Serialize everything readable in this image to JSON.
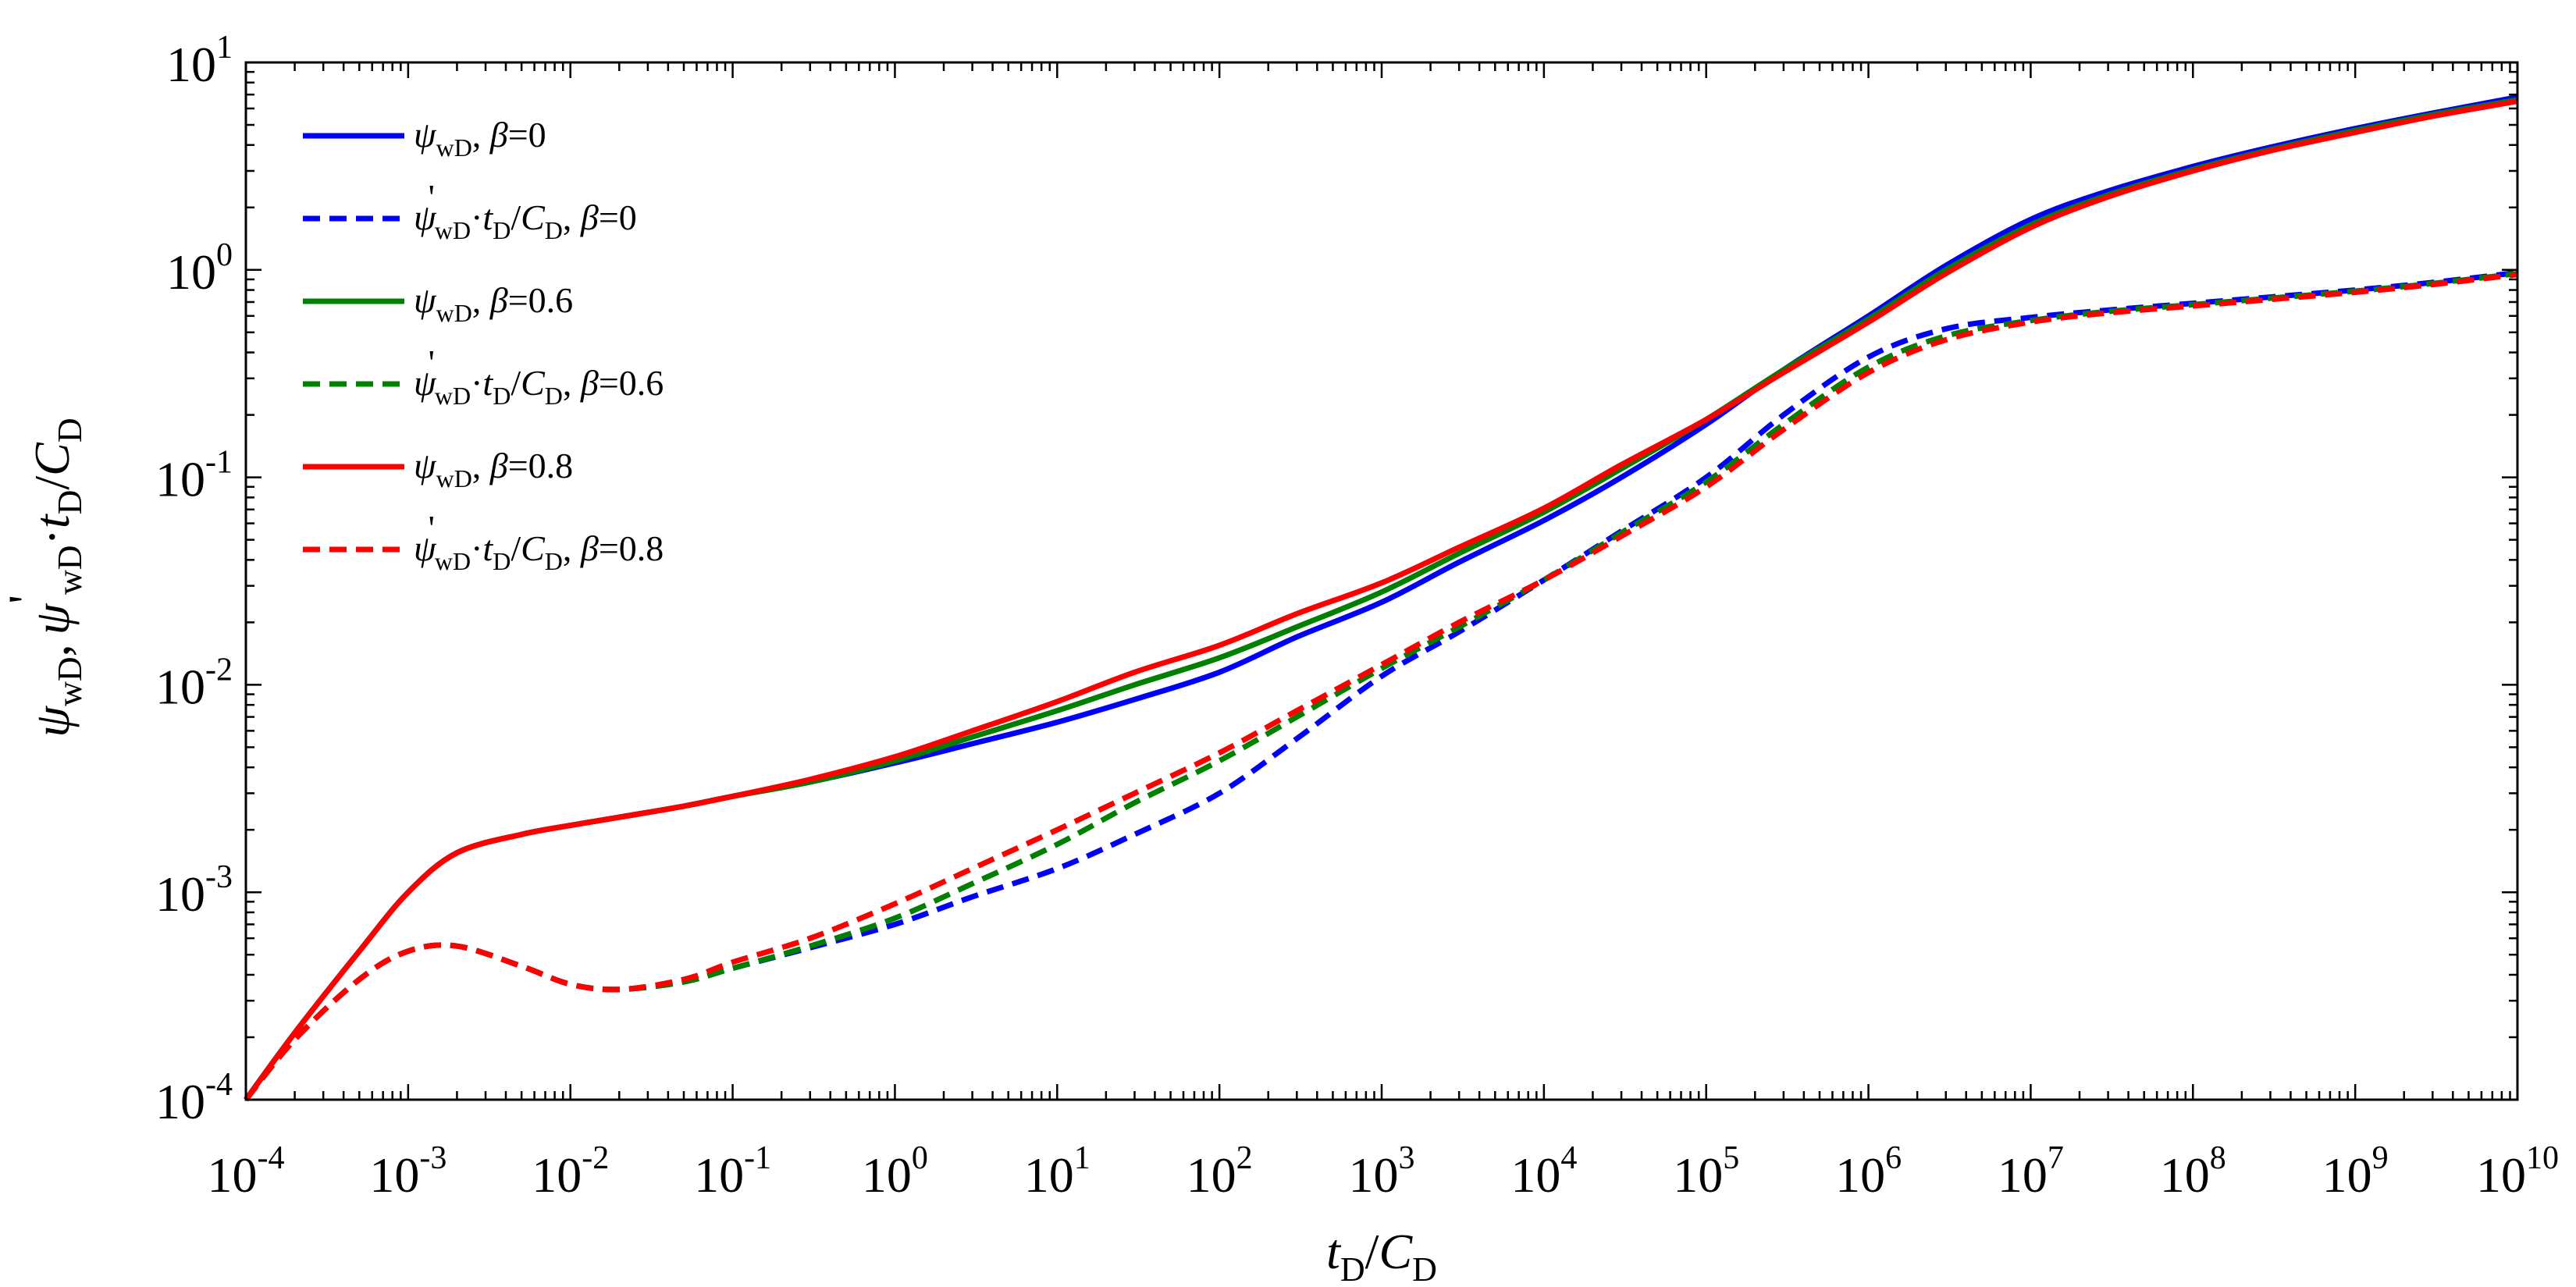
{
  "chart_data": {
    "type": "line",
    "xscale": "log",
    "yscale": "log",
    "xlim": [
      0.0001,
      10000000000
    ],
    "ylim": [
      0.0001,
      10
    ],
    "x_ticks": [
      {
        "base": "10",
        "exp": "-4",
        "value": 0.0001
      },
      {
        "base": "10",
        "exp": "-3",
        "value": 0.001
      },
      {
        "base": "10",
        "exp": "-2",
        "value": 0.01
      },
      {
        "base": "10",
        "exp": "-1",
        "value": 0.1
      },
      {
        "base": "10",
        "exp": "0",
        "value": 1
      },
      {
        "base": "10",
        "exp": "1",
        "value": 10
      },
      {
        "base": "10",
        "exp": "2",
        "value": 100
      },
      {
        "base": "10",
        "exp": "3",
        "value": 1000
      },
      {
        "base": "10",
        "exp": "4",
        "value": 10000
      },
      {
        "base": "10",
        "exp": "5",
        "value": 100000
      },
      {
        "base": "10",
        "exp": "6",
        "value": 1000000
      },
      {
        "base": "10",
        "exp": "7",
        "value": 10000000
      },
      {
        "base": "10",
        "exp": "8",
        "value": 100000000
      },
      {
        "base": "10",
        "exp": "9",
        "value": 1000000000
      },
      {
        "base": "10",
        "exp": "10",
        "value": 10000000000
      }
    ],
    "y_ticks": [
      {
        "base": "10",
        "exp": "-4",
        "value": 0.0001
      },
      {
        "base": "10",
        "exp": "-3",
        "value": 0.001
      },
      {
        "base": "10",
        "exp": "-2",
        "value": 0.01
      },
      {
        "base": "10",
        "exp": "-1",
        "value": 0.1
      },
      {
        "base": "10",
        "exp": "0",
        "value": 1
      },
      {
        "base": "10",
        "exp": "1",
        "value": 10
      }
    ],
    "xlabel": {
      "t": "t",
      "t_sub": "D",
      "slash": "/",
      "c": "C",
      "c_sub": "D"
    },
    "ylabel": {
      "psi": "ψ",
      "psi_sub": "wD",
      "comma": ",",
      "prime": "'",
      "dot": "·",
      "t": "t",
      "t_sub": "D",
      "slash": "/",
      "c": "C",
      "c_sub": "D"
    },
    "x": [
      0.0001,
      0.0002,
      0.0005,
      0.001,
      0.002,
      0.005,
      0.01,
      0.02,
      0.05,
      0.1,
      0.3,
      1,
      3,
      10,
      30,
      100,
      300,
      1000,
      3000,
      10000,
      30000,
      100000,
      300000,
      1000000,
      3000000,
      10000000,
      30000000,
      100000000,
      300000000,
      1000000000,
      3000000000,
      10000000000
    ],
    "grid": false,
    "legend_position": "top-left",
    "series": [
      {
        "name": "psi_b0",
        "color": "#0000ff",
        "dash": false,
        "label": {
          "psi": "ψ",
          "sub": "wD",
          "prime": "",
          "tail": "",
          "beta": "β",
          "val": "=0"
        },
        "values": [
          0.0001,
          0.00021,
          0.00052,
          0.001,
          0.00155,
          0.0019,
          0.0021,
          0.0023,
          0.0026,
          0.0029,
          0.0034,
          0.0042,
          0.0052,
          0.0066,
          0.0085,
          0.0115,
          0.017,
          0.025,
          0.039,
          0.062,
          0.1,
          0.18,
          0.33,
          0.6,
          1.05,
          1.75,
          2.4,
          3.15,
          3.9,
          4.8,
          5.7,
          6.8
        ]
      },
      {
        "name": "dpsi_b0",
        "color": "#0000ff",
        "dash": true,
        "label": {
          "psi": "ψ",
          "sub": "wD",
          "prime": "'",
          "tail": "·t_D/C_D,",
          "beta": "β",
          "val": "=0"
        },
        "values": [
          0.0001,
          0.000195,
          0.00038,
          0.00052,
          0.00055,
          0.00044,
          0.00036,
          0.00034,
          0.00037,
          0.00043,
          0.00054,
          0.0007,
          0.00095,
          0.0013,
          0.0019,
          0.003,
          0.0055,
          0.011,
          0.018,
          0.032,
          0.055,
          0.1,
          0.2,
          0.38,
          0.52,
          0.59,
          0.64,
          0.69,
          0.74,
          0.8,
          0.87,
          0.97
        ]
      },
      {
        "name": "psi_b06",
        "color": "#008000",
        "dash": false,
        "label": {
          "psi": "ψ",
          "sub": "wD",
          "prime": "",
          "tail": "",
          "beta": "β",
          "val": "=0.6"
        },
        "values": [
          0.0001,
          0.00021,
          0.00052,
          0.001,
          0.00155,
          0.0019,
          0.0021,
          0.0023,
          0.0026,
          0.0029,
          0.0034,
          0.0043,
          0.0056,
          0.0075,
          0.01,
          0.0135,
          0.019,
          0.028,
          0.043,
          0.068,
          0.11,
          0.19,
          0.33,
          0.58,
          1.0,
          1.65,
          2.3,
          3.05,
          3.8,
          4.7,
          5.6,
          6.6
        ]
      },
      {
        "name": "dpsi_b06",
        "color": "#008000",
        "dash": true,
        "label": {
          "psi": "ψ",
          "sub": "wD",
          "prime": "'",
          "tail": "·t_D/C_D,",
          "beta": "β",
          "val": "=0.6"
        },
        "values": [
          0.0001,
          0.000195,
          0.00038,
          0.00052,
          0.00055,
          0.00044,
          0.00036,
          0.00034,
          0.00037,
          0.00043,
          0.00055,
          0.00075,
          0.0011,
          0.0017,
          0.0027,
          0.0043,
          0.007,
          0.012,
          0.019,
          0.032,
          0.054,
          0.095,
          0.18,
          0.34,
          0.48,
          0.57,
          0.63,
          0.68,
          0.73,
          0.79,
          0.86,
          0.96
        ]
      },
      {
        "name": "psi_b08",
        "color": "#ff0000",
        "dash": false,
        "label": {
          "psi": "ψ",
          "sub": "wD",
          "prime": "",
          "tail": "",
          "beta": "β",
          "val": "=0.8"
        },
        "values": [
          0.0001,
          0.00021,
          0.00052,
          0.001,
          0.00155,
          0.0019,
          0.0021,
          0.0023,
          0.0026,
          0.0029,
          0.0035,
          0.0045,
          0.006,
          0.0083,
          0.0115,
          0.0155,
          0.022,
          0.031,
          0.046,
          0.071,
          0.115,
          0.19,
          0.32,
          0.56,
          0.96,
          1.6,
          2.25,
          3.0,
          3.75,
          4.6,
          5.5,
          6.5
        ]
      },
      {
        "name": "dpsi_b08",
        "color": "#ff0000",
        "dash": true,
        "label": {
          "psi": "ψ",
          "sub": "wD",
          "prime": "'",
          "tail": "·t_D/C_D,",
          "beta": "β",
          "val": "=0.8"
        },
        "values": [
          0.0001,
          0.000195,
          0.00038,
          0.00052,
          0.00055,
          0.00044,
          0.00036,
          0.00034,
          0.00038,
          0.00046,
          0.0006,
          0.00088,
          0.0013,
          0.002,
          0.003,
          0.0047,
          0.0075,
          0.0125,
          0.02,
          0.032,
          0.052,
          0.09,
          0.17,
          0.32,
          0.46,
          0.56,
          0.62,
          0.67,
          0.72,
          0.78,
          0.85,
          0.95
        ]
      }
    ]
  }
}
